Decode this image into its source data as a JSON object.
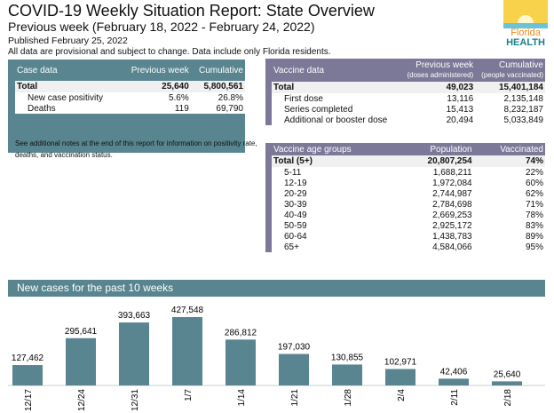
{
  "header": {
    "title": "COVID-19 Weekly Situation Report: State Overview",
    "subtitle": "Previous week (February 18, 2022 - February 24, 2022)",
    "published": "Published February 25, 2022",
    "disclaimer": "All data are provisional and subject to change. Data include only Florida residents.",
    "logo_text": "Florida HEALTH"
  },
  "case_table": {
    "headers": [
      "Case data",
      "Previous week",
      "Cumulative"
    ],
    "rows": [
      [
        "Total",
        "25,640",
        "5,800,561"
      ],
      [
        "New case positivity",
        "5.6%",
        "26.8%"
      ],
      [
        "Deaths",
        "119",
        "69,790"
      ]
    ]
  },
  "notes": "See additional notes at the end of this report for information on positivity rate, deaths, and vaccination status.",
  "vaccine_table": {
    "headers": [
      "Vaccine data",
      "Previous week",
      "Cumulative"
    ],
    "subheaders": [
      "(doses administered)",
      "(people vaccinated)"
    ],
    "rows": [
      [
        "Total",
        "49,023",
        "15,401,184"
      ],
      [
        "First dose",
        "13,116",
        "2,135,148"
      ],
      [
        "Series completed",
        "15,413",
        "8,232,187"
      ],
      [
        "Additional or booster dose",
        "20,494",
        "5,033,849"
      ]
    ]
  },
  "age_table": {
    "headers": [
      "Vaccine age groups",
      "Population",
      "Vaccinated"
    ],
    "rows": [
      [
        "Total (5+)",
        "20,807,254",
        "74%"
      ],
      [
        "5-11",
        "1,688,211",
        "22%"
      ],
      [
        "12-19",
        "1,972,084",
        "60%"
      ],
      [
        "20-29",
        "2,744,987",
        "62%"
      ],
      [
        "30-39",
        "2,784,698",
        "71%"
      ],
      [
        "40-49",
        "2,669,253",
        "78%"
      ],
      [
        "50-59",
        "2,925,172",
        "83%"
      ],
      [
        "60-64",
        "1,438,783",
        "89%"
      ],
      [
        "65+",
        "4,584,066",
        "95%"
      ]
    ]
  },
  "chart_data": {
    "type": "bar",
    "title": "New cases for the past 10 weeks",
    "categories": [
      "12/17",
      "12/24",
      "12/31",
      "1/7",
      "1/14",
      "1/21",
      "1/28",
      "2/4",
      "2/11",
      "2/18"
    ],
    "values": [
      127462,
      295641,
      393663,
      427548,
      286812,
      197030,
      130855,
      102971,
      42406,
      25640
    ],
    "labels": [
      "127,462",
      "295,641",
      "393,663",
      "427,548",
      "286,812",
      "197,030",
      "130,855",
      "102,971",
      "42,406",
      "25,640"
    ],
    "color": "#58858f"
  }
}
